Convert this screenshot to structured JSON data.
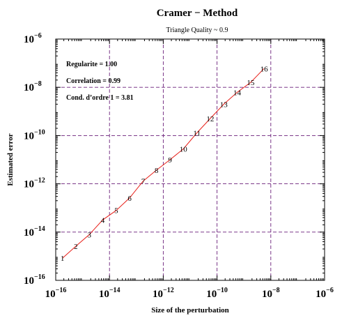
{
  "chart_data": {
    "type": "line",
    "title": "Cramer − Method",
    "subtitle": "Triangle Quality  ~ 0.9",
    "xlabel": "Size of the perturbation",
    "ylabel": "Estimated error",
    "x_scale": "log",
    "y_scale": "log",
    "xlim": [
      1e-16,
      1e-06
    ],
    "ylim": [
      1e-16,
      1e-06
    ],
    "grid": true,
    "x_ticks": [
      {
        "mantissa": "10",
        "exp": "−16"
      },
      {
        "mantissa": "10",
        "exp": "−14"
      },
      {
        "mantissa": "10",
        "exp": "−12"
      },
      {
        "mantissa": "10",
        "exp": "−10"
      },
      {
        "mantissa": "10",
        "exp": "−8"
      },
      {
        "mantissa": "10",
        "exp": "−6"
      }
    ],
    "y_ticks": [
      {
        "mantissa": "10",
        "exp": "−16"
      },
      {
        "mantissa": "10",
        "exp": "−14"
      },
      {
        "mantissa": "10",
        "exp": "−12"
      },
      {
        "mantissa": "10",
        "exp": "−10"
      },
      {
        "mantissa": "10",
        "exp": "−8"
      },
      {
        "mantissa": "10",
        "exp": "−6"
      }
    ],
    "annotations": [
      "Regularite  = 1.00",
      "Correlation = 0.99",
      "Cond. d’ordre 1 = 3.81"
    ],
    "series": [
      {
        "color": "#e8201a",
        "points": [
          {
            "label": "1",
            "x": 1.78e-16,
            "y": 8.3e-16
          },
          {
            "label": "2",
            "x": 5.6e-16,
            "y": 2.6e-15
          },
          {
            "label": "3",
            "x": 1.78e-15,
            "y": 7.9e-15
          },
          {
            "label": "4",
            "x": 5.6e-15,
            "y": 3.2e-14
          },
          {
            "label": "5",
            "x": 1.78e-14,
            "y": 7.9e-14
          },
          {
            "label": "6",
            "x": 5.6e-14,
            "y": 2.6e-13
          },
          {
            "label": "7",
            "x": 1.78e-13,
            "y": 1.3e-12
          },
          {
            "label": "8",
            "x": 5.6e-13,
            "y": 3.7e-12
          },
          {
            "label": "9",
            "x": 1.78e-12,
            "y": 1e-11
          },
          {
            "label": "10",
            "x": 5.6e-12,
            "y": 2.8e-11
          },
          {
            "label": "11",
            "x": 1.78e-11,
            "y": 1.3e-10
          },
          {
            "label": "12",
            "x": 5.6e-11,
            "y": 5.1e-10
          },
          {
            "label": "13",
            "x": 1.78e-10,
            "y": 2e-09
          },
          {
            "label": "14",
            "x": 5.6e-10,
            "y": 6.2e-09
          },
          {
            "label": "15",
            "x": 1.78e-09,
            "y": 1.6e-08
          },
          {
            "label": "16",
            "x": 5.6e-09,
            "y": 6e-08
          }
        ]
      }
    ]
  }
}
